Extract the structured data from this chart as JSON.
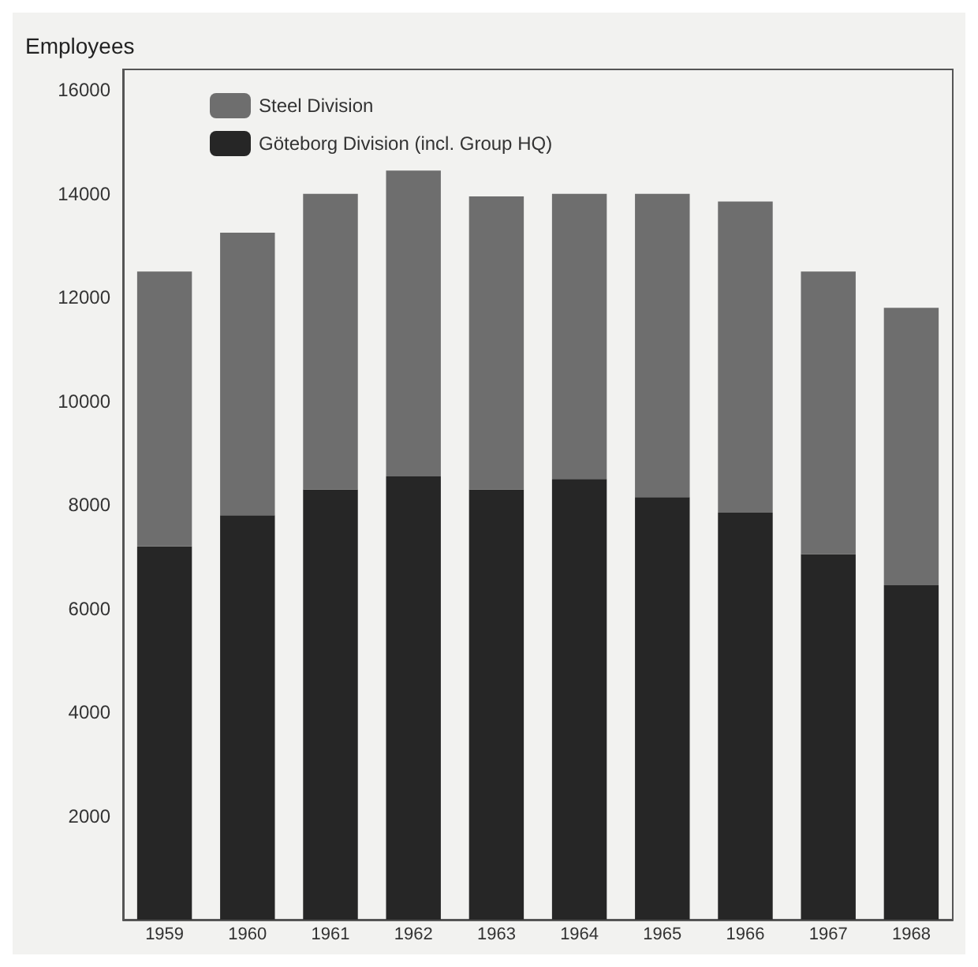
{
  "chart_data": {
    "type": "bar",
    "stacked": true,
    "ylabel": "Employees",
    "categories": [
      "1959",
      "1960",
      "1961",
      "1962",
      "1963",
      "1964",
      "1965",
      "1966",
      "1967",
      "1968"
    ],
    "series": [
      {
        "name": "Göteborg Division (incl. Group HQ)",
        "color": "#262626",
        "values": [
          7200,
          7800,
          8300,
          8550,
          8300,
          8500,
          8150,
          7850,
          7050,
          6450
        ]
      },
      {
        "name": "Steel Division",
        "color": "#6e6e6e",
        "values": [
          5300,
          5450,
          5700,
          5900,
          5650,
          5500,
          5850,
          6000,
          5450,
          5350
        ]
      }
    ],
    "ylim": [
      0,
      16400
    ],
    "yticks": [
      2000,
      4000,
      6000,
      8000,
      10000,
      12000,
      14000,
      16000
    ],
    "grid": false,
    "legend": "top left"
  }
}
